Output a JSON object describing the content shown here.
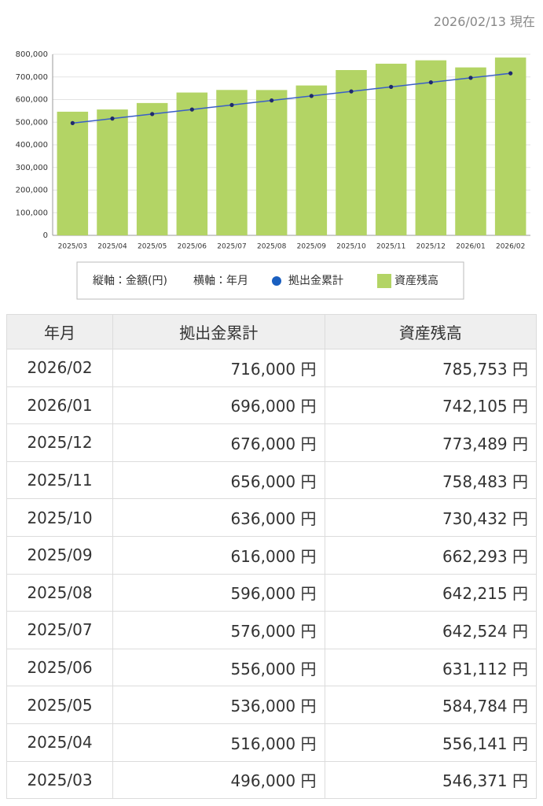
{
  "header": {
    "date": "2026/02/13 現在"
  },
  "chart_data": {
    "type": "bar",
    "ylabel": "縦軸：金額(円)",
    "xlabel": "横軸：年月",
    "categories": [
      "2025/03",
      "2025/04",
      "2025/05",
      "2025/06",
      "2025/07",
      "2025/08",
      "2025/09",
      "2025/10",
      "2025/11",
      "2025/12",
      "2026/01",
      "2026/02"
    ],
    "series": [
      {
        "name": "拠出金累計",
        "type": "line",
        "color": "#3a5fc8",
        "marker_color": "#1f2a6e",
        "values": [
          496000,
          516000,
          536000,
          556000,
          576000,
          596000,
          616000,
          636000,
          656000,
          676000,
          696000,
          716000
        ]
      },
      {
        "name": "資産残高",
        "type": "bar",
        "color": "#b3d465",
        "values": [
          546371,
          556141,
          584784,
          631112,
          642524,
          642215,
          662293,
          730432,
          758483,
          773489,
          742105,
          785753
        ]
      }
    ],
    "ylim": [
      0,
      800000
    ],
    "yticks": [
      0,
      {
        "value": 100000,
        "label": "100,000"
      },
      {
        "value": 200000,
        "label": "200,000"
      },
      {
        "value": 300000,
        "label": "300,000"
      },
      {
        "value": 400000,
        "label": "400,000"
      },
      {
        "value": 500000,
        "label": "500,000"
      },
      {
        "value": 600000,
        "label": "600,000"
      },
      {
        "value": 700000,
        "label": "700,000"
      },
      {
        "value": 800000,
        "label": "800,000"
      }
    ],
    "grid": true
  },
  "table": {
    "header": [
      "年月",
      "拠出金累計",
      "資産残高"
    ],
    "rows": [
      [
        "2026/02",
        "716,000 円",
        "785,753 円"
      ],
      [
        "2026/01",
        "696,000 円",
        "742,105 円"
      ],
      [
        "2025/12",
        "676,000 円",
        "773,489 円"
      ],
      [
        "2025/11",
        "656,000 円",
        "758,483 円"
      ],
      [
        "2025/10",
        "636,000 円",
        "730,432 円"
      ],
      [
        "2025/09",
        "616,000 円",
        "662,293 円"
      ],
      [
        "2025/08",
        "596,000 円",
        "642,215 円"
      ],
      [
        "2025/07",
        "576,000 円",
        "642,524 円"
      ],
      [
        "2025/06",
        "556,000 円",
        "631,112 円"
      ],
      [
        "2025/05",
        "536,000 円",
        "584,784 円"
      ],
      [
        "2025/04",
        "516,000 円",
        "556,141 円"
      ],
      [
        "2025/03",
        "496,000 円",
        "546,371 円"
      ]
    ]
  }
}
